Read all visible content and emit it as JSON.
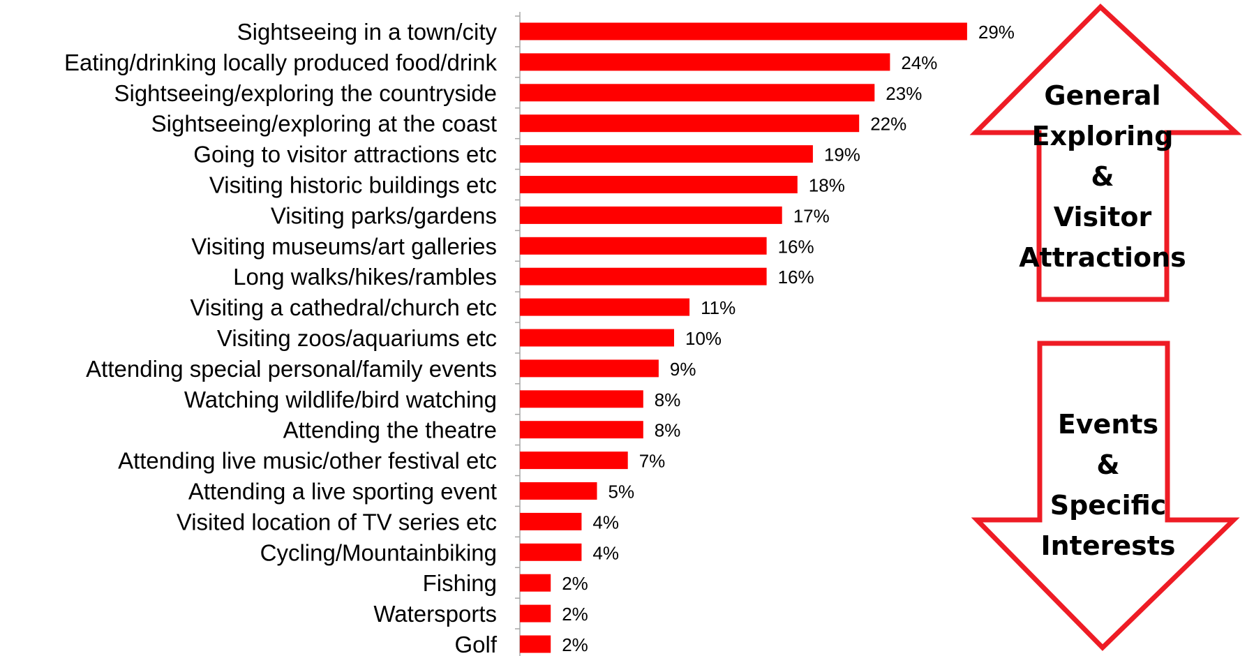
{
  "chart_data": {
    "type": "bar",
    "orientation": "horizontal",
    "categories": [
      "Sightseeing in a town/city",
      "Eating/drinking locally produced food/drink",
      "Sightseeing/exploring the countryside",
      "Sightseeing/exploring at the coast",
      "Going to visitor attractions etc",
      "Visiting historic buildings etc",
      "Visiting parks/gardens",
      "Visiting museums/art galleries",
      "Long walks/hikes/rambles",
      "Visiting a cathedral/church etc",
      "Visiting zoos/aquariums etc",
      "Attending special personal/family events",
      "Watching wildlife/bird watching",
      "Attending the theatre",
      "Attending live music/other festival etc",
      "Attending a live sporting event",
      "Visited location of TV series etc",
      "Cycling/Mountainbiking",
      "Fishing",
      "Watersports",
      "Golf"
    ],
    "values": [
      29,
      24,
      23,
      22,
      19,
      18,
      17,
      16,
      16,
      11,
      10,
      9,
      8,
      8,
      7,
      5,
      4,
      4,
      2,
      2,
      2
    ],
    "data_labels": [
      "29%",
      "24%",
      "23%",
      "22%",
      "19%",
      "18%",
      "17%",
      "16%",
      "16%",
      "11%",
      "10%",
      "9%",
      "8%",
      "8%",
      "7%",
      "5%",
      "4%",
      "4%",
      "2%",
      "2%",
      "2%"
    ],
    "xlim": [
      0,
      30
    ],
    "grid": false,
    "bar_color": "#ff0000",
    "annotations": [
      {
        "shape": "up-arrow",
        "lines": [
          "General",
          "Exploring",
          "&",
          "Visitor",
          "Attractions"
        ],
        "outline_color": "#ee1c25"
      },
      {
        "shape": "down-arrow",
        "lines": [
          "Events",
          "&",
          "Specific",
          "Interests"
        ],
        "outline_color": "#ee1c25"
      }
    ]
  }
}
